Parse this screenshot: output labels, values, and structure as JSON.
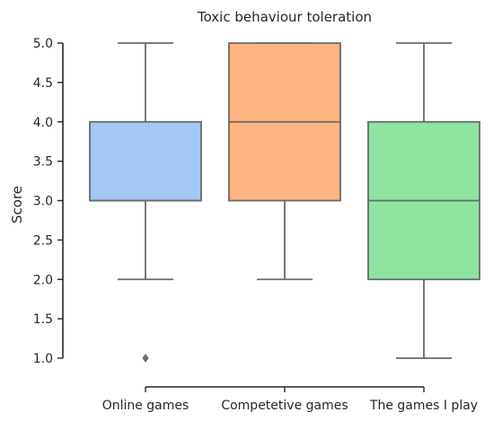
{
  "chart_data": {
    "type": "box",
    "title": "Toxic behaviour toleration",
    "xlabel": "",
    "ylabel": "Score",
    "ylim": [
      1.0,
      5.0
    ],
    "yticks": [
      "1.0",
      "1.5",
      "2.0",
      "2.5",
      "3.0",
      "3.5",
      "4.0",
      "4.5",
      "5.0"
    ],
    "categories": [
      "Online games",
      "Competetive games",
      "The games I play"
    ],
    "boxes": [
      {
        "category": "Online games",
        "whisker_low": 2.0,
        "q1": 3.0,
        "median": 3.0,
        "q3": 4.0,
        "whisker_high": 5.0,
        "outliers": [
          1.0
        ],
        "color": "#a1c9f4"
      },
      {
        "category": "Competetive games",
        "whisker_low": 2.0,
        "q1": 3.0,
        "median": 4.0,
        "q3": 5.0,
        "whisker_high": 5.0,
        "outliers": [],
        "color": "#ffb482"
      },
      {
        "category": "The games I play",
        "whisker_low": 1.0,
        "q1": 2.0,
        "median": 3.0,
        "q3": 4.0,
        "whisker_high": 5.0,
        "outliers": [],
        "color": "#8de5a1"
      }
    ],
    "grid": false,
    "legend": "none"
  }
}
